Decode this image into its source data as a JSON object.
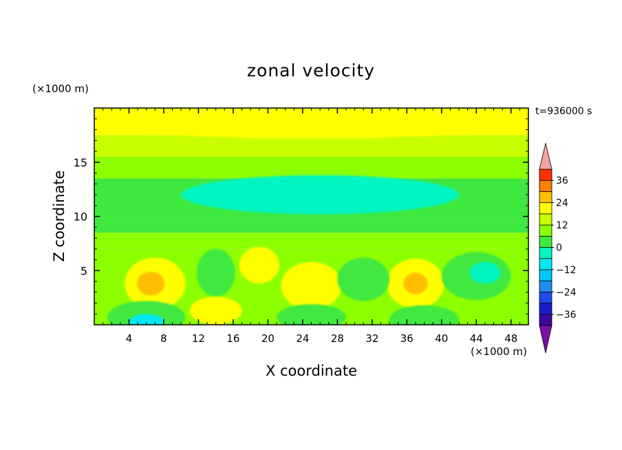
{
  "chart_data": {
    "type": "heatmap",
    "title": "zonal velocity",
    "xlabel": "X coordinate",
    "ylabel": "Z coordinate",
    "x_multiplier": "(×1000 m)",
    "y_multiplier": "(×1000 m)",
    "time_label": "t=936000 s",
    "xlim": [
      0,
      50
    ],
    "ylim": [
      0,
      20
    ],
    "xticks": [
      4,
      8,
      12,
      16,
      20,
      24,
      28,
      32,
      36,
      40,
      44,
      48
    ],
    "yticks": [
      5,
      10,
      15
    ],
    "colorbar": {
      "levels": [
        -42,
        -36,
        -30,
        -24,
        -18,
        -12,
        -6,
        0,
        6,
        12,
        18,
        24,
        30,
        36,
        42
      ],
      "colors": [
        "#7a0fa0",
        "#3b0a9c",
        "#1c1ccc",
        "#1e4af0",
        "#1f8ef5",
        "#00c8ff",
        "#00e8f0",
        "#00f5c0",
        "#3fe83f",
        "#8cff00",
        "#c8ff00",
        "#ffff00",
        "#ffbf00",
        "#ff7f00",
        "#ff3000",
        "#ff0000",
        "#f4a3a0"
      ],
      "tick_labels": [
        "36",
        "24",
        "12",
        "0",
        "−12",
        "−24",
        "−36"
      ],
      "tick_values": [
        36,
        24,
        12,
        0,
        -12,
        -24,
        -36
      ]
    },
    "field": {
      "description_levels": "value bands in m/s",
      "bands": [
        {
          "z": [
            17.5,
            20
          ],
          "value": 12
        },
        {
          "z": [
            15.5,
            17.5
          ],
          "value": 6
        },
        {
          "z": [
            14.5,
            15.5
          ],
          "value": 3
        },
        {
          "z": [
            13.5,
            14.5
          ],
          "value": 0
        },
        {
          "z": [
            9.5,
            13.5
          ],
          "value": -6
        },
        {
          "z": [
            8.5,
            9.5
          ],
          "value": -3
        },
        {
          "z": [
            7,
            8.5
          ],
          "value": 0
        },
        {
          "z": [
            0,
            7
          ],
          "value": 3
        }
      ],
      "cells": [
        {
          "x": 7,
          "z": 3.8,
          "rx": 3.5,
          "rz": 2.4,
          "value": 12
        },
        {
          "x": 6.5,
          "z": 3.8,
          "rx": 1.6,
          "rz": 1.1,
          "value": 18
        },
        {
          "x": 25,
          "z": 3.6,
          "rx": 3.5,
          "rz": 2.2,
          "value": 12
        },
        {
          "x": 37,
          "z": 3.8,
          "rx": 3.3,
          "rz": 2.3,
          "value": 12
        },
        {
          "x": 37,
          "z": 3.8,
          "rx": 1.4,
          "rz": 1.0,
          "value": 18
        },
        {
          "x": 14,
          "z": 4.8,
          "rx": 2.2,
          "rz": 2.2,
          "value": -6
        },
        {
          "x": 31,
          "z": 4.2,
          "rx": 3.0,
          "rz": 2.0,
          "value": -6
        },
        {
          "x": 44,
          "z": 4.5,
          "rx": 4.0,
          "rz": 2.2,
          "value": -6
        },
        {
          "x": 45,
          "z": 4.8,
          "rx": 1.8,
          "rz": 1.0,
          "value": -12
        },
        {
          "x": 19,
          "z": 5.5,
          "rx": 2.3,
          "rz": 1.7,
          "value": 12
        },
        {
          "x": 14,
          "z": 1.3,
          "rx": 3.0,
          "rz": 1.3,
          "value": 12
        },
        {
          "x": 6,
          "z": 0.7,
          "rx": 4.5,
          "rz": 1.5,
          "value": -6
        },
        {
          "x": 6,
          "z": 0.3,
          "rx": 2.0,
          "rz": 0.7,
          "value": -18
        },
        {
          "x": 25,
          "z": 0.7,
          "rx": 4.0,
          "rz": 1.2,
          "value": -6
        },
        {
          "x": 38,
          "z": 0.5,
          "rx": 4.0,
          "rz": 1.3,
          "value": -6
        },
        {
          "x": 25,
          "z": 18.7,
          "rx": 26,
          "rz": 1.5,
          "value": 12
        },
        {
          "x": 26,
          "z": 12.0,
          "rx": 16,
          "rz": 1.8,
          "value": -9
        }
      ]
    }
  }
}
